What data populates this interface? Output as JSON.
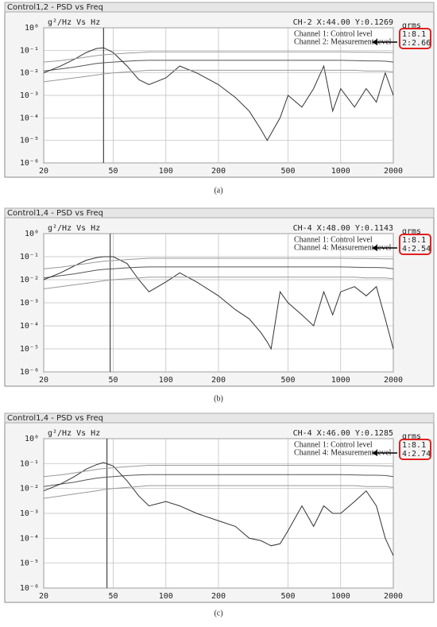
{
  "chart_data": [
    {
      "type": "line",
      "window_title": "Control1,2 - PSD vs Freq",
      "title": "g²/Hz Vs Hz",
      "cursor_readout": "CH-2 X:44.00 Y:0.1269",
      "cursor_x": 44,
      "grms_label": "grms",
      "grms_values": [
        "1:8.1",
        "2:2.66"
      ],
      "caption": "(a)",
      "log_x": true,
      "log_y": true,
      "grid": true,
      "xlim": [
        20,
        2000
      ],
      "ylim": [
        1e-06,
        1
      ],
      "xticks": [
        20,
        50,
        100,
        200,
        500,
        1000,
        2000
      ],
      "yticks": [
        {
          "value": 1,
          "label": "10⁰"
        },
        {
          "value": 0.1,
          "label": "10⁻¹"
        },
        {
          "value": 0.01,
          "label": "10⁻²"
        },
        {
          "value": 0.001,
          "label": "10⁻³"
        },
        {
          "value": 0.0001,
          "label": "10⁻⁴"
        },
        {
          "value": 1e-05,
          "label": "10⁻⁵"
        },
        {
          "value": 1e-06,
          "label": "10⁻⁶"
        }
      ],
      "x": [
        20,
        25,
        30,
        35,
        40,
        44,
        50,
        60,
        70,
        80,
        100,
        120,
        150,
        200,
        250,
        300,
        350,
        380,
        400,
        450,
        500,
        600,
        700,
        800,
        900,
        1000,
        1200,
        1400,
        1600,
        1800,
        2000
      ],
      "series": [
        {
          "name": "Channel 1:  Control level",
          "color": "#555555",
          "values": [
            0.012,
            0.015,
            0.018,
            0.022,
            0.026,
            0.028,
            0.03,
            0.033,
            0.035,
            0.036,
            0.036,
            0.036,
            0.036,
            0.036,
            0.036,
            0.036,
            0.036,
            0.036,
            0.036,
            0.036,
            0.036,
            0.036,
            0.036,
            0.036,
            0.036,
            0.036,
            0.035,
            0.034,
            0.034,
            0.033,
            0.03
          ]
        },
        {
          "name": "Channel 2:  Measurement level",
          "color": "#333333",
          "values": [
            0.01,
            0.02,
            0.04,
            0.08,
            0.12,
            0.13,
            0.08,
            0.02,
            0.005,
            0.003,
            0.006,
            0.02,
            0.01,
            0.003,
            0.0008,
            0.0002,
            3e-05,
            1e-05,
            2e-05,
            0.0001,
            0.001,
            0.0003,
            0.002,
            0.02,
            0.0002,
            0.002,
            0.0003,
            0.002,
            0.0005,
            0.01,
            0.001
          ]
        },
        {
          "color": "#999999",
          "values": [
            0.03,
            0.035,
            0.042,
            0.05,
            0.058,
            0.063,
            0.068,
            0.075,
            0.08,
            0.085,
            0.085,
            0.085,
            0.085,
            0.085,
            0.085,
            0.085,
            0.085,
            0.085,
            0.085,
            0.085,
            0.085,
            0.085,
            0.085,
            0.085,
            0.085,
            0.085,
            0.084,
            0.083,
            0.082,
            0.081,
            0.08
          ]
        },
        {
          "color": "#999999",
          "values": [
            0.004,
            0.005,
            0.006,
            0.007,
            0.008,
            0.009,
            0.01,
            0.011,
            0.012,
            0.013,
            0.013,
            0.013,
            0.013,
            0.013,
            0.013,
            0.013,
            0.013,
            0.013,
            0.013,
            0.013,
            0.013,
            0.013,
            0.013,
            0.013,
            0.013,
            0.013,
            0.013,
            0.012,
            0.012,
            0.012,
            0.011
          ]
        }
      ]
    },
    {
      "type": "line",
      "window_title": "Control1,4 - PSD vs Freq",
      "title": "g²/Hz Vs Hz",
      "cursor_readout": "CH-4 X:48.00 Y:0.1143",
      "cursor_x": 48,
      "grms_label": "grms",
      "grms_values": [
        "1:8.1",
        "4:2.54"
      ],
      "caption": "(b)",
      "log_x": true,
      "log_y": true,
      "grid": true,
      "xlim": [
        20,
        2000
      ],
      "ylim": [
        1e-06,
        1
      ],
      "xticks": [
        20,
        50,
        100,
        200,
        500,
        1000,
        2000
      ],
      "yticks": [
        {
          "value": 1,
          "label": "10⁰"
        },
        {
          "value": 0.1,
          "label": "10⁻¹"
        },
        {
          "value": 0.01,
          "label": "10⁻²"
        },
        {
          "value": 0.001,
          "label": "10⁻³"
        },
        {
          "value": 0.0001,
          "label": "10⁻⁴"
        },
        {
          "value": 1e-05,
          "label": "10⁻⁵"
        },
        {
          "value": 1e-06,
          "label": "10⁻⁶"
        }
      ],
      "x": [
        20,
        25,
        30,
        35,
        40,
        44,
        50,
        60,
        70,
        80,
        100,
        120,
        150,
        200,
        250,
        300,
        350,
        380,
        400,
        450,
        500,
        600,
        700,
        800,
        900,
        1000,
        1200,
        1400,
        1600,
        1800,
        2000
      ],
      "series": [
        {
          "name": "Channel 1:  Control level",
          "color": "#555555",
          "values": [
            0.012,
            0.015,
            0.018,
            0.022,
            0.026,
            0.028,
            0.03,
            0.033,
            0.035,
            0.036,
            0.036,
            0.036,
            0.036,
            0.036,
            0.036,
            0.036,
            0.036,
            0.036,
            0.036,
            0.036,
            0.036,
            0.036,
            0.036,
            0.036,
            0.036,
            0.036,
            0.035,
            0.034,
            0.034,
            0.033,
            0.03
          ]
        },
        {
          "name": "Channel 4:  Measurement level",
          "color": "#333333",
          "values": [
            0.01,
            0.02,
            0.04,
            0.07,
            0.09,
            0.1,
            0.1,
            0.05,
            0.01,
            0.003,
            0.008,
            0.02,
            0.008,
            0.002,
            0.0005,
            0.0002,
            5e-05,
            2e-05,
            1e-05,
            0.003,
            0.001,
            0.0003,
            0.0001,
            0.003,
            0.0003,
            0.003,
            0.005,
            0.002,
            0.005,
            0.0002,
            1e-05
          ]
        },
        {
          "color": "#999999",
          "values": [
            0.03,
            0.035,
            0.042,
            0.05,
            0.058,
            0.063,
            0.068,
            0.075,
            0.08,
            0.085,
            0.085,
            0.085,
            0.085,
            0.085,
            0.085,
            0.085,
            0.085,
            0.085,
            0.085,
            0.085,
            0.085,
            0.085,
            0.085,
            0.085,
            0.085,
            0.085,
            0.084,
            0.083,
            0.082,
            0.081,
            0.08
          ]
        },
        {
          "color": "#999999",
          "values": [
            0.004,
            0.005,
            0.006,
            0.007,
            0.008,
            0.009,
            0.01,
            0.011,
            0.012,
            0.013,
            0.013,
            0.013,
            0.013,
            0.013,
            0.013,
            0.013,
            0.013,
            0.013,
            0.013,
            0.013,
            0.013,
            0.013,
            0.013,
            0.013,
            0.013,
            0.013,
            0.013,
            0.012,
            0.012,
            0.012,
            0.011
          ]
        }
      ]
    },
    {
      "type": "line",
      "window_title": "Control1,4 - PSD vs Freq",
      "title": "g²/Hz Vs Hz",
      "cursor_readout": "CH-4 X:46.00 Y:0.1285",
      "cursor_x": 46,
      "grms_label": "grms",
      "grms_values": [
        "1:8.1",
        "4:2.74"
      ],
      "caption": "(c)",
      "log_x": true,
      "log_y": true,
      "grid": true,
      "xlim": [
        20,
        2000
      ],
      "ylim": [
        1e-06,
        1
      ],
      "xticks": [
        20,
        50,
        100,
        200,
        500,
        1000,
        2000
      ],
      "yticks": [
        {
          "value": 1,
          "label": "10⁰"
        },
        {
          "value": 0.1,
          "label": "10⁻¹"
        },
        {
          "value": 0.01,
          "label": "10⁻²"
        },
        {
          "value": 0.001,
          "label": "10⁻³"
        },
        {
          "value": 0.0001,
          "label": "10⁻⁴"
        },
        {
          "value": 1e-05,
          "label": "10⁻⁵"
        },
        {
          "value": 1e-06,
          "label": "10⁻⁶"
        }
      ],
      "x": [
        20,
        25,
        30,
        35,
        40,
        44,
        50,
        60,
        70,
        80,
        100,
        120,
        150,
        200,
        250,
        300,
        350,
        380,
        400,
        450,
        500,
        600,
        700,
        800,
        900,
        1000,
        1200,
        1400,
        1600,
        1800,
        2000
      ],
      "series": [
        {
          "name": "Channel 1:  Control level",
          "color": "#555555",
          "values": [
            0.012,
            0.015,
            0.018,
            0.022,
            0.026,
            0.028,
            0.03,
            0.033,
            0.035,
            0.036,
            0.036,
            0.036,
            0.036,
            0.036,
            0.036,
            0.036,
            0.036,
            0.036,
            0.036,
            0.036,
            0.036,
            0.036,
            0.036,
            0.036,
            0.036,
            0.036,
            0.035,
            0.034,
            0.034,
            0.033,
            0.03
          ]
        },
        {
          "name": "Channel 4:  Measurement level",
          "color": "#333333",
          "values": [
            0.008,
            0.015,
            0.03,
            0.06,
            0.09,
            0.11,
            0.08,
            0.02,
            0.005,
            0.002,
            0.003,
            0.002,
            0.001,
            0.0005,
            0.0003,
            0.0001,
            8e-05,
            6e-05,
            5e-05,
            6e-05,
            0.0002,
            0.002,
            0.0003,
            0.002,
            0.001,
            0.001,
            0.003,
            0.008,
            0.002,
            0.0001,
            2e-05
          ]
        },
        {
          "color": "#999999",
          "values": [
            0.03,
            0.035,
            0.042,
            0.05,
            0.058,
            0.063,
            0.068,
            0.075,
            0.08,
            0.085,
            0.085,
            0.085,
            0.085,
            0.085,
            0.085,
            0.085,
            0.085,
            0.085,
            0.085,
            0.085,
            0.085,
            0.085,
            0.085,
            0.085,
            0.085,
            0.085,
            0.084,
            0.083,
            0.082,
            0.081,
            0.08
          ]
        },
        {
          "color": "#999999",
          "values": [
            0.004,
            0.005,
            0.006,
            0.007,
            0.008,
            0.009,
            0.01,
            0.011,
            0.012,
            0.013,
            0.013,
            0.013,
            0.013,
            0.013,
            0.013,
            0.013,
            0.013,
            0.013,
            0.013,
            0.013,
            0.013,
            0.013,
            0.013,
            0.013,
            0.013,
            0.013,
            0.013,
            0.012,
            0.012,
            0.012,
            0.011
          ]
        }
      ]
    }
  ]
}
